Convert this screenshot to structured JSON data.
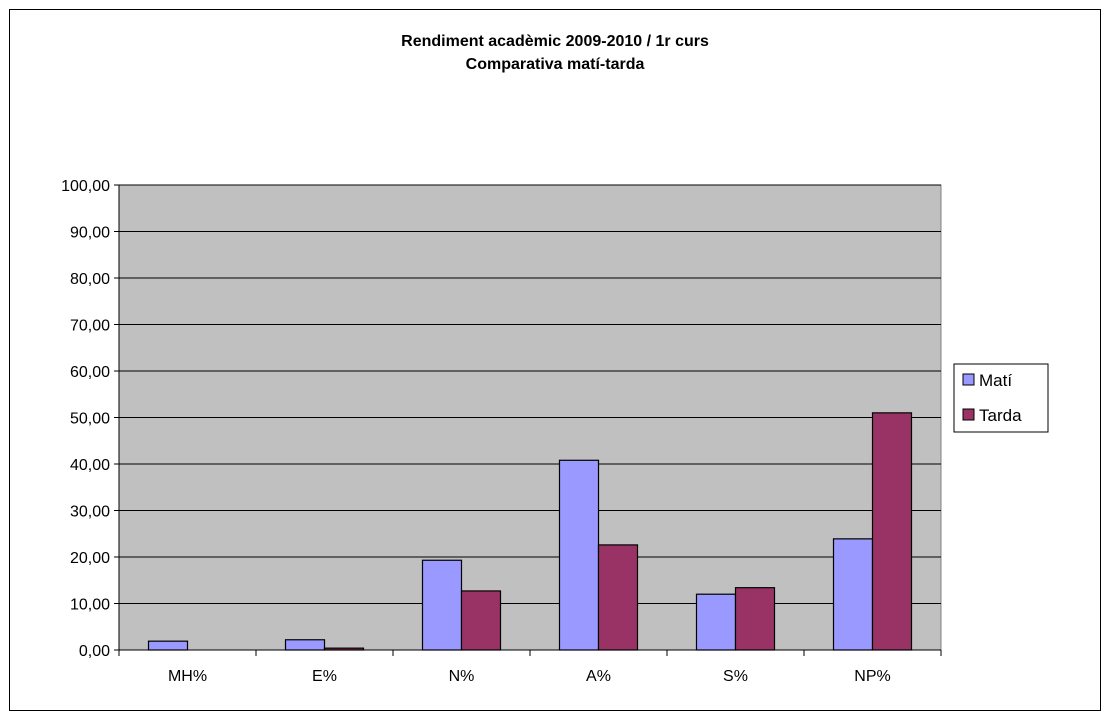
{
  "chart_data": {
    "type": "bar",
    "title": "Rendiment acadèmic 2009-2010 / 1r curs",
    "subtitle": "Comparativa matí-tarda",
    "categories": [
      "MH%",
      "E%",
      "N%",
      "A%",
      "S%",
      "NP%"
    ],
    "series": [
      {
        "name": "Matí",
        "color": "#9999FF",
        "values": [
          1.9,
          2.2,
          19.3,
          40.8,
          12.0,
          23.9
        ]
      },
      {
        "name": "Tarda",
        "color": "#993366",
        "values": [
          0.0,
          0.4,
          12.7,
          22.6,
          13.4,
          51.0
        ]
      }
    ],
    "ylim": [
      0,
      100
    ],
    "yticks": [
      "0,00",
      "10,00",
      "20,00",
      "30,00",
      "40,00",
      "50,00",
      "60,00",
      "70,00",
      "80,00",
      "90,00",
      "100,00"
    ],
    "plot_background": "#C0C0C0",
    "grid": true,
    "legend_position": "right"
  }
}
